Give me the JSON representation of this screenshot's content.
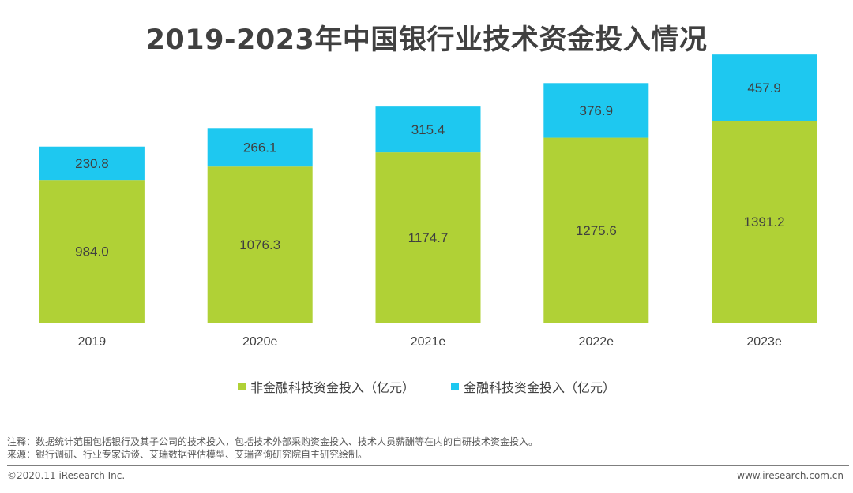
{
  "colors": {
    "non_fintech": "#b0d136",
    "fintech": "#1ec8f0",
    "axis": "#808080",
    "label_text": "#404040"
  },
  "chart_data": {
    "type": "bar",
    "stacked": true,
    "title": "2019-2023年中国银行业技术资金投入情况",
    "categories": [
      "2019",
      "2020e",
      "2021e",
      "2022e",
      "2023e"
    ],
    "series": [
      {
        "name": "非金融科技资金投入（亿元）",
        "values": [
          984.0,
          1076.3,
          1174.7,
          1275.6,
          1391.2
        ]
      },
      {
        "name": "金融科技资金投入（亿元）",
        "values": [
          230.8,
          266.1,
          315.4,
          376.9,
          457.9
        ]
      }
    ],
    "value_labels": [
      [
        "984.0",
        "1076.3",
        "1174.7",
        "1275.6",
        "1391.2"
      ],
      [
        "230.8",
        "266.1",
        "315.4",
        "376.9",
        "457.9"
      ]
    ],
    "xlabel": "",
    "ylabel": "",
    "ylim": [
      0,
      1850
    ],
    "grid": false,
    "legend_position": "bottom-center"
  },
  "notes": {
    "note": "注释：数据统计范围包括银行及其子公司的技术投入，包括技术外部采购资金投入、技术人员薪酬等在内的自研技术资金投入。",
    "source": "来源：银行调研、行业专家访谈、艾瑞数据评估模型、艾瑞咨询研究院自主研究绘制。"
  },
  "footer": {
    "copyright": "©2020.11 iResearch Inc.",
    "website": "www.iresearch.com.cn"
  }
}
